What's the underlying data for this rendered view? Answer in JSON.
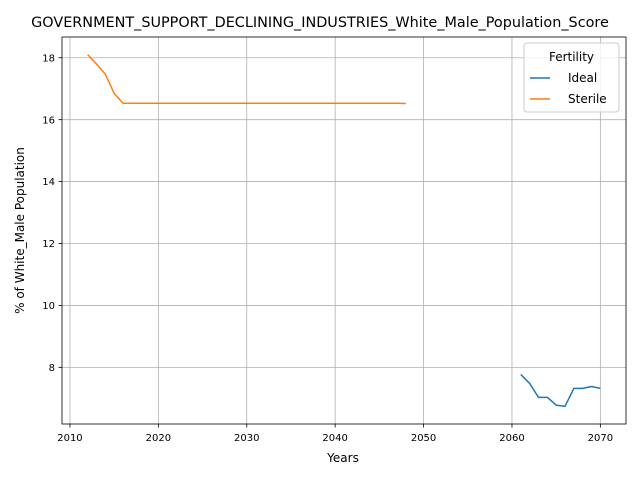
{
  "chart_data": {
    "type": "line",
    "title": "GOVERNMENT_SUPPORT_DECLINING_INDUSTRIES_White_Male_Population_Score",
    "xlabel": "Years",
    "ylabel": "% of White_Male Population",
    "xlim": [
      2009.1,
      2072.9
    ],
    "ylim": [
      6.17,
      18.67
    ],
    "xticks": [
      2010,
      2020,
      2030,
      2040,
      2050,
      2060,
      2070
    ],
    "yticks": [
      8,
      10,
      12,
      14,
      16,
      18
    ],
    "grid": true,
    "legend": {
      "title": "Fertility",
      "placement": "top-right"
    },
    "series": [
      {
        "name": "Ideal",
        "color": "#1f77b4",
        "x": [
          2061,
          2062,
          2063,
          2064,
          2065,
          2066,
          2067,
          2068,
          2069,
          2070
        ],
        "y": [
          7.77,
          7.48,
          7.03,
          7.03,
          6.78,
          6.74,
          7.32,
          7.32,
          7.38,
          7.32
        ]
      },
      {
        "name": "Sterile",
        "color": "#ff7f0e",
        "x": [
          2012,
          2013,
          2014,
          2015,
          2016,
          2017,
          2018,
          2019,
          2020,
          2021,
          2022,
          2023,
          2024,
          2025,
          2026,
          2027,
          2028,
          2029,
          2030,
          2031,
          2032,
          2033,
          2034,
          2035,
          2036,
          2037,
          2038,
          2039,
          2040,
          2041,
          2042,
          2043,
          2044,
          2045,
          2046,
          2047,
          2048
        ],
        "y": [
          18.1,
          17.8,
          17.47,
          16.85,
          16.53,
          16.53,
          16.53,
          16.53,
          16.53,
          16.53,
          16.53,
          16.53,
          16.53,
          16.53,
          16.53,
          16.53,
          16.53,
          16.53,
          16.53,
          16.53,
          16.53,
          16.53,
          16.53,
          16.53,
          16.53,
          16.53,
          16.53,
          16.53,
          16.53,
          16.53,
          16.53,
          16.53,
          16.53,
          16.53,
          16.53,
          16.53,
          16.52
        ]
      }
    ]
  }
}
